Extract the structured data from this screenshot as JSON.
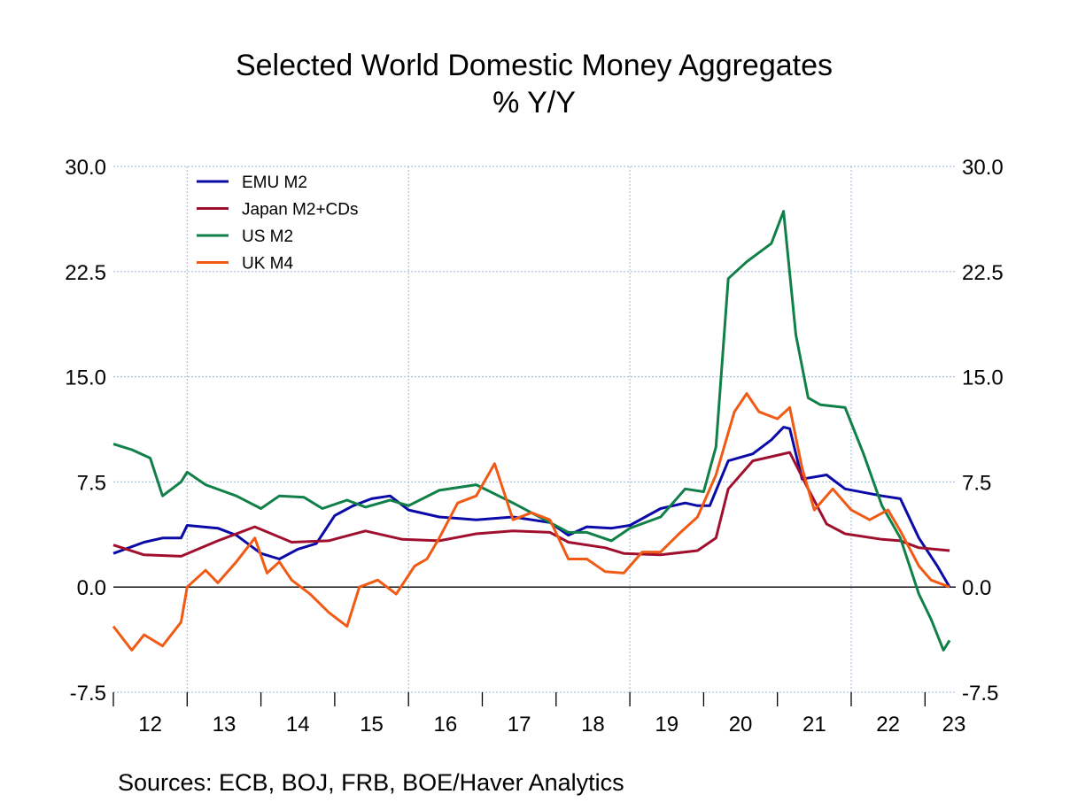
{
  "chart_data": {
    "type": "line",
    "title": "Selected World Domestic Money Aggregates",
    "subtitle": "% Y/Y",
    "source": "Sources:   ECB, BOJ, FRB, BOE/Haver Analytics",
    "xlim": [
      "2012-01",
      "2023-06"
    ],
    "ylim": [
      -7.5,
      30.0
    ],
    "yticks": [
      "30.0",
      "22.5",
      "15.0",
      "7.5",
      "0.0",
      "-7.5"
    ],
    "xtick_labels": [
      "12",
      "13",
      "14",
      "15",
      "16",
      "17",
      "18",
      "19",
      "20",
      "21",
      "22",
      "23"
    ],
    "grid": true,
    "legend_placement": "top-left",
    "series": [
      {
        "name": "EMU M2",
        "color": "#0a0aa8",
        "points": [
          [
            "2012-01",
            2.4
          ],
          [
            "2012-06",
            3.2
          ],
          [
            "2012-09",
            3.5
          ],
          [
            "2012-12",
            3.5
          ],
          [
            "2013-01",
            4.4
          ],
          [
            "2013-06",
            4.2
          ],
          [
            "2013-09",
            3.7
          ],
          [
            "2014-01",
            2.4
          ],
          [
            "2014-04",
            2.0
          ],
          [
            "2014-07",
            2.7
          ],
          [
            "2014-10",
            3.1
          ],
          [
            "2015-01",
            5.1
          ],
          [
            "2015-04",
            5.8
          ],
          [
            "2015-07",
            6.3
          ],
          [
            "2015-10",
            6.5
          ],
          [
            "2016-01",
            5.5
          ],
          [
            "2016-06",
            5.0
          ],
          [
            "2016-12",
            4.8
          ],
          [
            "2017-06",
            5.0
          ],
          [
            "2017-12",
            4.6
          ],
          [
            "2018-03",
            3.7
          ],
          [
            "2018-06",
            4.3
          ],
          [
            "2018-10",
            4.2
          ],
          [
            "2019-01",
            4.4
          ],
          [
            "2019-06",
            5.6
          ],
          [
            "2019-10",
            6.0
          ],
          [
            "2019-12",
            5.8
          ],
          [
            "2020-02",
            5.8
          ],
          [
            "2020-05",
            9.0
          ],
          [
            "2020-09",
            9.5
          ],
          [
            "2020-12",
            10.5
          ],
          [
            "2021-02",
            11.4
          ],
          [
            "2021-03",
            11.3
          ],
          [
            "2021-05",
            7.7
          ],
          [
            "2021-09",
            8.0
          ],
          [
            "2021-12",
            7.0
          ],
          [
            "2022-06",
            6.5
          ],
          [
            "2022-09",
            6.3
          ],
          [
            "2022-12",
            3.5
          ],
          [
            "2023-03",
            1.5
          ],
          [
            "2023-05",
            0.0
          ]
        ]
      },
      {
        "name": "Japan M2+CDs",
        "color": "#a0102e",
        "points": [
          [
            "2012-01",
            3.0
          ],
          [
            "2012-06",
            2.3
          ],
          [
            "2012-12",
            2.2
          ],
          [
            "2013-06",
            3.3
          ],
          [
            "2013-12",
            4.3
          ],
          [
            "2014-06",
            3.2
          ],
          [
            "2014-12",
            3.3
          ],
          [
            "2015-06",
            4.0
          ],
          [
            "2015-12",
            3.4
          ],
          [
            "2016-06",
            3.3
          ],
          [
            "2016-12",
            3.8
          ],
          [
            "2017-06",
            4.0
          ],
          [
            "2017-12",
            3.9
          ],
          [
            "2018-03",
            3.2
          ],
          [
            "2018-09",
            2.8
          ],
          [
            "2018-12",
            2.4
          ],
          [
            "2019-06",
            2.3
          ],
          [
            "2019-12",
            2.6
          ],
          [
            "2020-03",
            3.5
          ],
          [
            "2020-05",
            7.0
          ],
          [
            "2020-09",
            9.0
          ],
          [
            "2020-12",
            9.3
          ],
          [
            "2021-03",
            9.6
          ],
          [
            "2021-06",
            7.0
          ],
          [
            "2021-09",
            4.5
          ],
          [
            "2021-12",
            3.8
          ],
          [
            "2022-06",
            3.4
          ],
          [
            "2022-09",
            3.3
          ],
          [
            "2022-12",
            2.8
          ],
          [
            "2023-05",
            2.6
          ]
        ]
      },
      {
        "name": "US M2",
        "color": "#108048",
        "points": [
          [
            "2012-01",
            10.2
          ],
          [
            "2012-04",
            9.8
          ],
          [
            "2012-07",
            9.2
          ],
          [
            "2012-09",
            6.5
          ],
          [
            "2012-12",
            7.5
          ],
          [
            "2013-01",
            8.2
          ],
          [
            "2013-04",
            7.3
          ],
          [
            "2013-09",
            6.5
          ],
          [
            "2014-01",
            5.6
          ],
          [
            "2014-04",
            6.5
          ],
          [
            "2014-08",
            6.4
          ],
          [
            "2014-11",
            5.6
          ],
          [
            "2015-03",
            6.2
          ],
          [
            "2015-06",
            5.7
          ],
          [
            "2015-10",
            6.2
          ],
          [
            "2016-01",
            5.8
          ],
          [
            "2016-06",
            6.9
          ],
          [
            "2016-12",
            7.3
          ],
          [
            "2017-06",
            6.0
          ],
          [
            "2017-12",
            4.6
          ],
          [
            "2018-03",
            3.9
          ],
          [
            "2018-06",
            3.9
          ],
          [
            "2018-10",
            3.3
          ],
          [
            "2019-01",
            4.2
          ],
          [
            "2019-06",
            5.0
          ],
          [
            "2019-10",
            7.0
          ],
          [
            "2020-01",
            6.8
          ],
          [
            "2020-03",
            10.0
          ],
          [
            "2020-05",
            22.0
          ],
          [
            "2020-08",
            23.2
          ],
          [
            "2020-12",
            24.5
          ],
          [
            "2021-02",
            26.8
          ],
          [
            "2021-04",
            18.0
          ],
          [
            "2021-06",
            13.5
          ],
          [
            "2021-08",
            13.0
          ],
          [
            "2021-12",
            12.8
          ],
          [
            "2022-03",
            9.5
          ],
          [
            "2022-06",
            5.8
          ],
          [
            "2022-09",
            3.5
          ],
          [
            "2022-12",
            -0.5
          ],
          [
            "2023-02",
            -2.3
          ],
          [
            "2023-04",
            -4.5
          ],
          [
            "2023-05",
            -3.8
          ]
        ]
      },
      {
        "name": "UK M4",
        "color": "#f05a14",
        "points": [
          [
            "2012-01",
            -2.8
          ],
          [
            "2012-04",
            -4.5
          ],
          [
            "2012-06",
            -3.4
          ],
          [
            "2012-09",
            -4.2
          ],
          [
            "2012-12",
            -2.5
          ],
          [
            "2013-01",
            0.0
          ],
          [
            "2013-04",
            1.2
          ],
          [
            "2013-06",
            0.3
          ],
          [
            "2013-09",
            1.8
          ],
          [
            "2013-12",
            3.5
          ],
          [
            "2014-02",
            1.0
          ],
          [
            "2014-04",
            1.8
          ],
          [
            "2014-06",
            0.5
          ],
          [
            "2014-09",
            -0.5
          ],
          [
            "2014-12",
            -1.8
          ],
          [
            "2015-03",
            -2.8
          ],
          [
            "2015-05",
            0.0
          ],
          [
            "2015-08",
            0.5
          ],
          [
            "2015-11",
            -0.5
          ],
          [
            "2016-02",
            1.5
          ],
          [
            "2016-04",
            2.0
          ],
          [
            "2016-06",
            3.5
          ],
          [
            "2016-09",
            6.0
          ],
          [
            "2016-12",
            6.5
          ],
          [
            "2017-03",
            8.8
          ],
          [
            "2017-06",
            4.8
          ],
          [
            "2017-09",
            5.3
          ],
          [
            "2017-12",
            4.8
          ],
          [
            "2018-03",
            2.0
          ],
          [
            "2018-06",
            2.0
          ],
          [
            "2018-09",
            1.1
          ],
          [
            "2018-12",
            1.0
          ],
          [
            "2019-03",
            2.5
          ],
          [
            "2019-06",
            2.5
          ],
          [
            "2019-09",
            3.8
          ],
          [
            "2019-12",
            5.0
          ],
          [
            "2020-03",
            8.0
          ],
          [
            "2020-06",
            12.5
          ],
          [
            "2020-08",
            13.8
          ],
          [
            "2020-10",
            12.5
          ],
          [
            "2021-01",
            12.0
          ],
          [
            "2021-03",
            12.8
          ],
          [
            "2021-05",
            8.5
          ],
          [
            "2021-07",
            5.5
          ],
          [
            "2021-10",
            7.0
          ],
          [
            "2022-01",
            5.5
          ],
          [
            "2022-04",
            4.8
          ],
          [
            "2022-07",
            5.5
          ],
          [
            "2022-09",
            4.0
          ],
          [
            "2022-12",
            1.5
          ],
          [
            "2023-02",
            0.5
          ],
          [
            "2023-05",
            0.0
          ]
        ]
      }
    ]
  }
}
